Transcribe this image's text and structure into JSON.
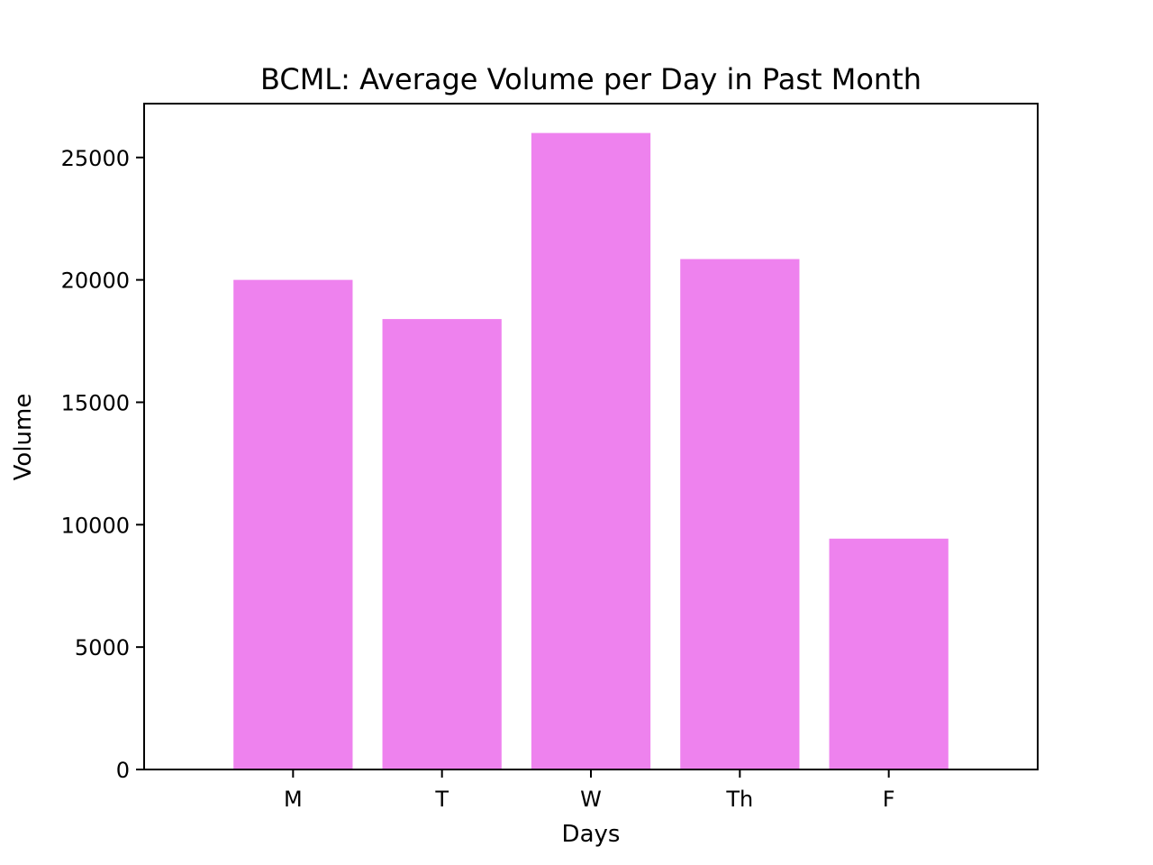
{
  "chart_data": {
    "type": "bar",
    "title": "BCML: Average Volume per Day in Past Month",
    "xlabel": "Days",
    "ylabel": "Volume",
    "categories": [
      "M",
      "T",
      "W",
      "Th",
      "F"
    ],
    "values": [
      20000,
      18400,
      26000,
      20850,
      9430
    ],
    "ylim": [
      0,
      27200
    ],
    "yticks": [
      0,
      5000,
      10000,
      15000,
      20000,
      25000
    ],
    "ytick_labels": [
      "0",
      "5000",
      "10000",
      "15000",
      "20000",
      "25000"
    ],
    "bar_color": "#ee82ee",
    "grid": false,
    "legend": "none"
  }
}
